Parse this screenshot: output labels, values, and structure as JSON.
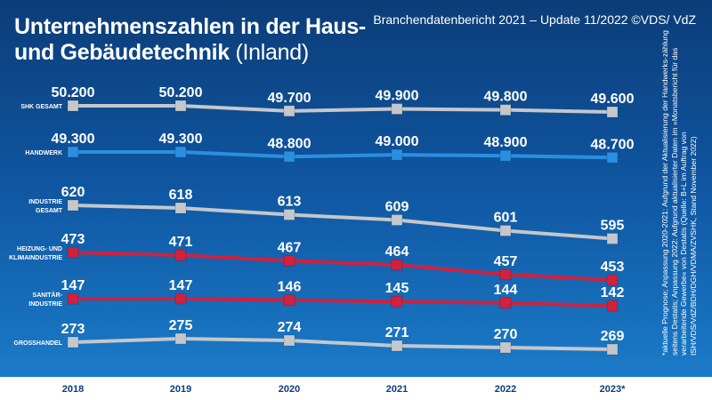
{
  "header": {
    "title_line1": "Unternehmenszahlen in der Haus-",
    "title_line2_bold": "und Gebäudetechnik",
    "title_line2_light": "(Inland)",
    "subtitle": "Branchendatenbericht 2021 – Update 11/2022 ©VDS/ VdZ"
  },
  "footnote": "*aktuelle Prognose; Anpassung 2020-2021: Aufgrund der Aktualisierung der Handwerks-zählung seitens Destatis; Anpassung 2022: Aufgrund aktualisierter Daten im »Monatsbericht für das verarbeitende Gewerbe« von Destatis (Quelle: B+L im Auftrag von ISH/VDS/VdZ/BDH/DGH/VDMA/ZVSHK, Stand November 2022)",
  "chart_data": {
    "type": "line",
    "categories": [
      "2018",
      "2019",
      "2020",
      "2021",
      "2022",
      "2023*"
    ],
    "series": [
      {
        "name": "SHK GESAMT",
        "label_lines": [
          "SHK GESAMT"
        ],
        "color": "#c4c7cc",
        "values": [
          50200,
          50200,
          49700,
          49900,
          49800,
          49600
        ],
        "labels": [
          "50.200",
          "50.200",
          "49.700",
          "49.900",
          "49.800",
          "49.600"
        ]
      },
      {
        "name": "HANDWERK",
        "label_lines": [
          "HANDWERK"
        ],
        "color": "#2a8fe0",
        "values": [
          49300,
          49300,
          48800,
          49000,
          48900,
          48700
        ],
        "labels": [
          "49.300",
          "49.300",
          "48.800",
          "49.000",
          "48.900",
          "48.700"
        ]
      },
      {
        "name": "INDUSTRIE GESAMT",
        "label_lines": [
          "INDUSTRIE",
          "GESAMT"
        ],
        "color": "#c4c7cc",
        "values": [
          620,
          618,
          613,
          609,
          601,
          595
        ],
        "labels": [
          "620",
          "618",
          "613",
          "609",
          "601",
          "595"
        ]
      },
      {
        "name": "HEIZUNG- UND KLIMAINDUSTRIE",
        "label_lines": [
          "HEIZUNG- UND",
          "KLIMAINDUSTRIE"
        ],
        "color": "#d0213f",
        "values": [
          473,
          471,
          467,
          464,
          457,
          453
        ],
        "labels": [
          "473",
          "471",
          "467",
          "464",
          "457",
          "453"
        ]
      },
      {
        "name": "SANITÄR-INDUSTRIE",
        "label_lines": [
          "SANITÄR-",
          "INDUSTRIE"
        ],
        "color": "#d0213f",
        "values": [
          147,
          147,
          146,
          145,
          144,
          142
        ],
        "labels": [
          "147",
          "147",
          "146",
          "145",
          "144",
          "142"
        ]
      },
      {
        "name": "GROSSHANDEL",
        "label_lines": [
          "GROSSHANDEL"
        ],
        "color": "#c4c7cc",
        "values": [
          273,
          275,
          274,
          271,
          270,
          269
        ],
        "labels": [
          "273",
          "275",
          "274",
          "271",
          "270",
          "269"
        ]
      }
    ]
  }
}
